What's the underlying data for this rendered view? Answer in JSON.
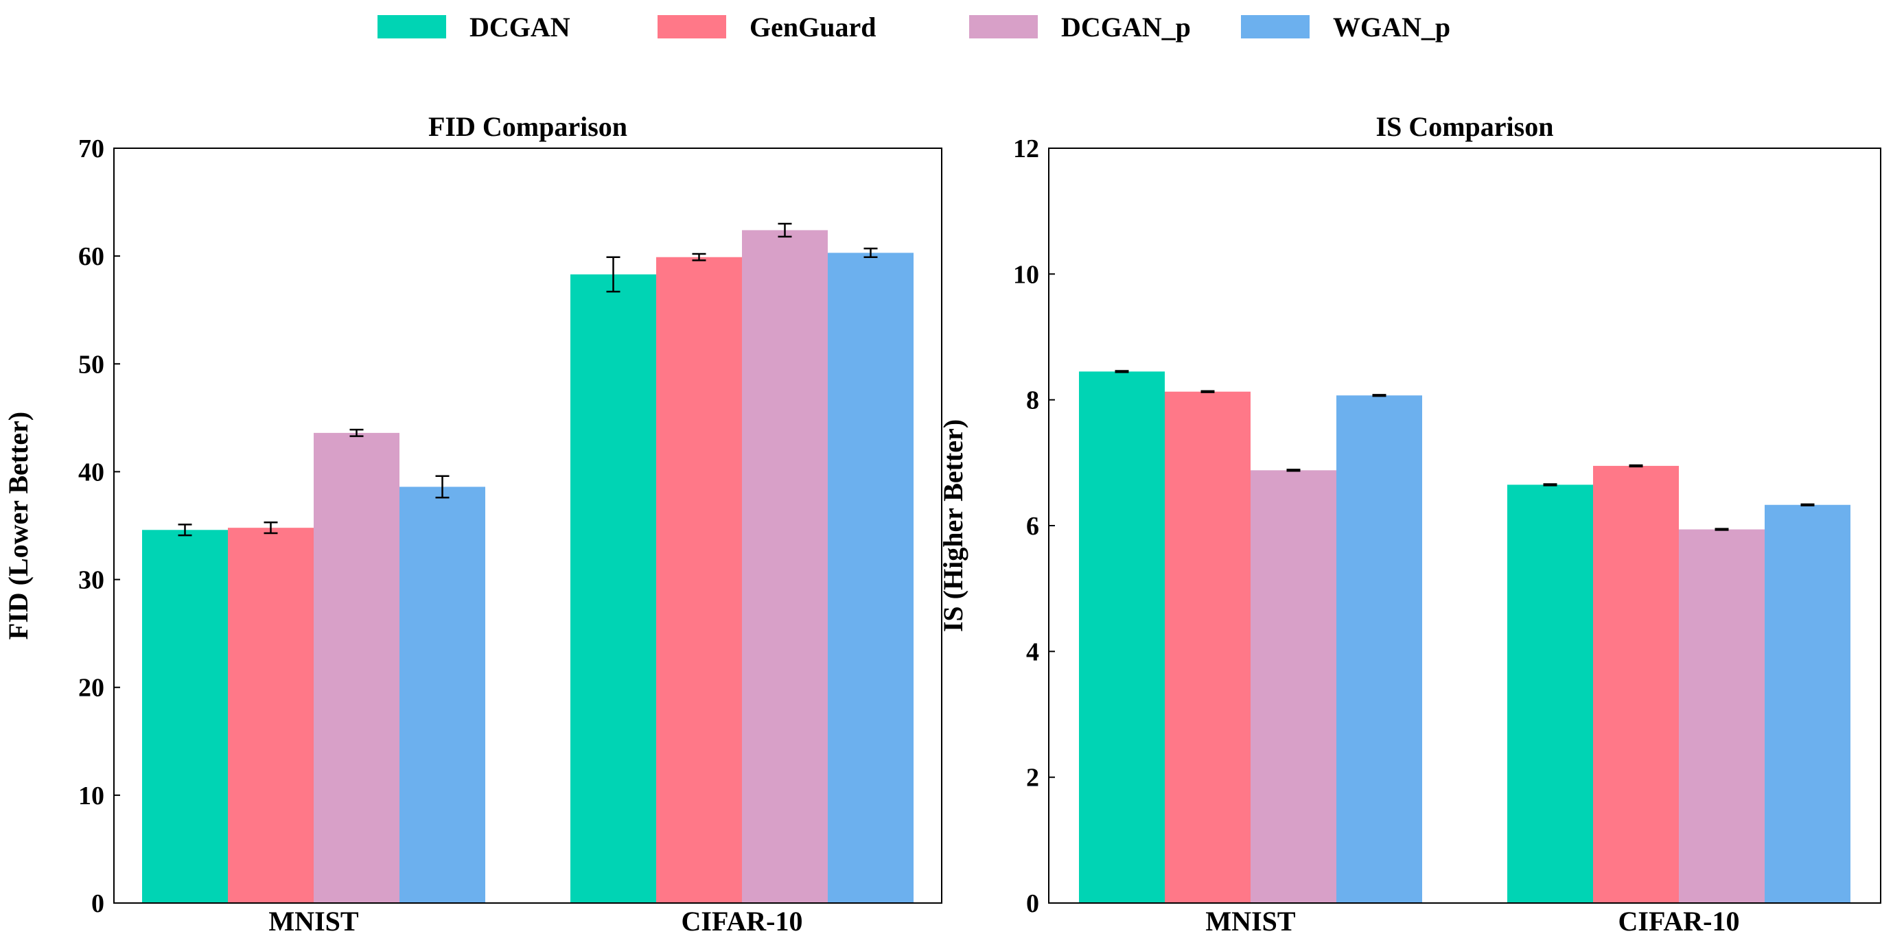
{
  "legend": [
    {
      "label": "DCGAN",
      "color": "#00d4b4"
    },
    {
      "label": "GenGuard",
      "color": "#ff7888"
    },
    {
      "label": "DCGAN_p",
      "color": "#d8a0c8"
    },
    {
      "label": "WGAN_p",
      "color": "#6cb0ee"
    }
  ],
  "chart_data": [
    {
      "type": "bar",
      "title": "FID Comparison",
      "xlabel": "",
      "ylabel": "FID (Lower Better)",
      "ylim": [
        0,
        70
      ],
      "yticks": [
        0,
        10,
        20,
        30,
        40,
        50,
        60,
        70
      ],
      "ytick_labels": [
        "0",
        "10",
        "20",
        "30",
        "40",
        "50",
        "60",
        "70"
      ],
      "categories": [
        "MNIST",
        "CIFAR-10"
      ],
      "series": [
        {
          "name": "DCGAN",
          "values": [
            34.6,
            58.3
          ],
          "errors": [
            0.5,
            1.6
          ]
        },
        {
          "name": "GenGuard",
          "values": [
            34.8,
            59.9
          ],
          "errors": [
            0.5,
            0.3
          ]
        },
        {
          "name": "DCGAN_p",
          "values": [
            43.6,
            62.4
          ],
          "errors": [
            0.3,
            0.6
          ]
        },
        {
          "name": "WGAN_p",
          "values": [
            38.6,
            60.3
          ],
          "errors": [
            1.0,
            0.4
          ]
        }
      ]
    },
    {
      "type": "bar",
      "title": "IS Comparison",
      "xlabel": "",
      "ylabel": "IS (Higher Better)",
      "ylim": [
        0,
        12
      ],
      "yticks": [
        0,
        2,
        4,
        6,
        8,
        10,
        12
      ],
      "ytick_labels": [
        "0",
        "2",
        "4",
        "6",
        "8",
        "10",
        "12"
      ],
      "categories": [
        "MNIST",
        "CIFAR-10"
      ],
      "series": [
        {
          "name": "DCGAN",
          "values": [
            8.45,
            6.65
          ],
          "errors": [
            0.01,
            0.01
          ]
        },
        {
          "name": "GenGuard",
          "values": [
            8.13,
            6.95
          ],
          "errors": [
            0.01,
            0.01
          ]
        },
        {
          "name": "DCGAN_p",
          "values": [
            6.88,
            5.94
          ],
          "errors": [
            0.01,
            0.01
          ]
        },
        {
          "name": "WGAN_p",
          "values": [
            8.07,
            6.33
          ],
          "errors": [
            0.01,
            0.01
          ]
        }
      ]
    }
  ]
}
